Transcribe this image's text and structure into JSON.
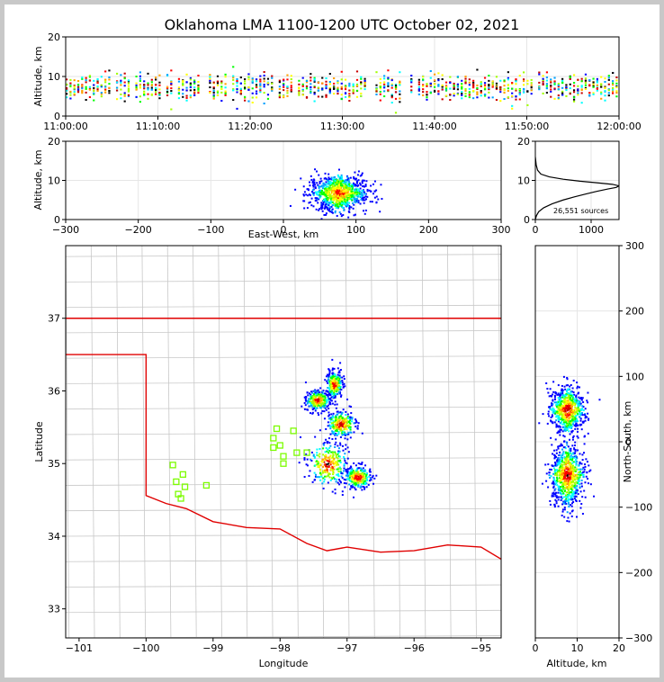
{
  "chart_data": {
    "title": "Oklahoma LMA 1100-1200 UTC October 02, 2021",
    "panels": [
      {
        "id": "time-altitude",
        "type": "heatmap",
        "ylabel": "Altitude, km",
        "ylim": [
          0,
          20
        ],
        "yticks": [
          "0",
          "10",
          "20"
        ],
        "xlim": [
          0,
          60
        ],
        "xtick_values": [
          0,
          10,
          20,
          30,
          40,
          50,
          60
        ],
        "xticks": [
          "11:00:00",
          "11:10:00",
          "11:20:00",
          "11:30:00",
          "11:40:00",
          "11:50:00",
          "12:00:00"
        ]
      },
      {
        "id": "east-west-altitude",
        "type": "heatmap",
        "xlabel": "East-West, km",
        "ylabel": "Altitude, km",
        "xlim": [
          -300,
          300
        ],
        "ylim": [
          0,
          20
        ],
        "xticks": [
          "−300",
          "−200",
          "−100",
          "0",
          "100",
          "200",
          "300"
        ],
        "xtick_values": [
          -300,
          -200,
          -100,
          0,
          100,
          200,
          300
        ],
        "yticks": [
          "0",
          "10",
          "20"
        ]
      },
      {
        "id": "altitude-histogram",
        "type": "line",
        "xlim": [
          0,
          1500
        ],
        "ylim": [
          0,
          20
        ],
        "xticks": [
          "0",
          "1000"
        ],
        "xtick_values": [
          0,
          1000
        ],
        "yticks": [
          "0",
          "10",
          "20"
        ],
        "annotation": "26,551 sources",
        "x": [
          0,
          20,
          60,
          150,
          300,
          500,
          700,
          900,
          1100,
          1300,
          1450,
          1500,
          1380,
          1100,
          800,
          500,
          250,
          100,
          40,
          15,
          0
        ],
        "y": [
          0,
          1,
          2,
          3,
          4,
          5,
          5.8,
          6.5,
          7.2,
          7.8,
          8.2,
          8.6,
          9.0,
          9.4,
          9.8,
          10.3,
          10.9,
          11.6,
          12.6,
          14,
          16
        ]
      },
      {
        "id": "plan-view-map",
        "type": "heatmap",
        "xlabel": "Longitude",
        "ylabel": "Latitude",
        "xlim": [
          -101.2,
          -94.7
        ],
        "ylim": [
          32.6,
          38.0
        ],
        "xticks": [
          "−101",
          "−100",
          "−99",
          "−98",
          "−97",
          "−96",
          "−95"
        ],
        "xtick_values": [
          -101,
          -100,
          -99,
          -98,
          -97,
          -96,
          -95
        ],
        "yticks": [
          "33",
          "34",
          "35",
          "36",
          "37"
        ],
        "ytick_values": [
          33,
          34,
          35,
          36,
          37
        ],
        "stations": [
          [
            -99.6,
            34.98
          ],
          [
            -99.45,
            34.85
          ],
          [
            -99.55,
            34.75
          ],
          [
            -99.42,
            34.68
          ],
          [
            -99.52,
            34.58
          ],
          [
            -99.48,
            34.52
          ],
          [
            -99.1,
            34.7
          ],
          [
            -98.05,
            35.48
          ],
          [
            -98.1,
            35.35
          ],
          [
            -98.0,
            35.25
          ],
          [
            -98.1,
            35.22
          ],
          [
            -97.95,
            35.1
          ],
          [
            -97.8,
            35.45
          ],
          [
            -97.75,
            35.15
          ],
          [
            -97.6,
            35.15
          ],
          [
            -97.95,
            35.0
          ]
        ],
        "clusters": [
          {
            "lon": -97.45,
            "lat": 35.88,
            "rx": 0.18,
            "ry": 0.14
          },
          {
            "lon": -97.2,
            "lat": 36.1,
            "rx": 0.12,
            "ry": 0.18
          },
          {
            "lon": -97.1,
            "lat": 35.55,
            "rx": 0.22,
            "ry": 0.18
          },
          {
            "lon": -97.3,
            "lat": 35.0,
            "rx": 0.3,
            "ry": 0.3
          },
          {
            "lon": -96.85,
            "lat": 34.82,
            "rx": 0.2,
            "ry": 0.15
          }
        ]
      },
      {
        "id": "north-south-altitude",
        "type": "heatmap",
        "xlabel": "Altitude, km",
        "ylabel": "North-South, km",
        "xlim": [
          0,
          20
        ],
        "ylim": [
          -300,
          300
        ],
        "xticks": [
          "0",
          "10",
          "20"
        ],
        "xtick_values": [
          0,
          10,
          20
        ],
        "yticks": [
          "−300",
          "−200",
          "−100",
          "0",
          "100",
          "200",
          "300"
        ],
        "ytick_values": [
          -300,
          -200,
          -100,
          0,
          100,
          200,
          300
        ]
      }
    ]
  }
}
